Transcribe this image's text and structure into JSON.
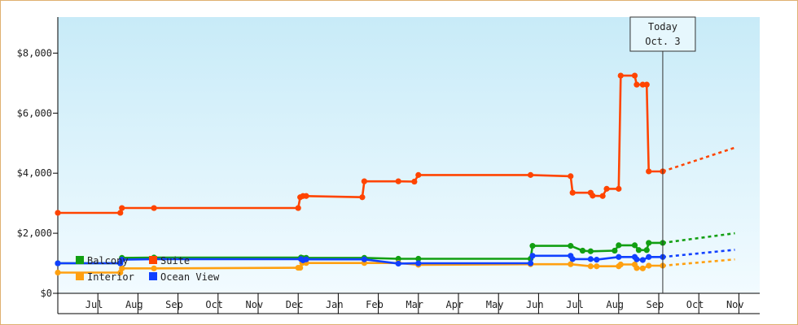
{
  "chart_data": {
    "type": "line",
    "title": "",
    "xlabel": "",
    "ylabel": "",
    "ylim": [
      0,
      9200
    ],
    "x_tick_labels": [
      "Jul",
      "Aug",
      "Sep",
      "Oct",
      "Nov",
      "Dec",
      "Jan",
      "Feb",
      "Mar",
      "Apr",
      "May",
      "Jun",
      "Jul",
      "Aug",
      "Sep",
      "Oct",
      "Nov"
    ],
    "y_ticks": [
      {
        "value": 0,
        "label": "$0"
      },
      {
        "value": 2000,
        "label": "$2,000"
      },
      {
        "value": 4000,
        "label": "$4,000"
      },
      {
        "value": 6000,
        "label": "$6,000"
      },
      {
        "value": 8000,
        "label": "$8,000"
      }
    ],
    "x_unit": "months since start (Jul = 0.5)",
    "today": {
      "line1": "Today",
      "line2": "Oct. 3",
      "x": 15.1
    },
    "legend_placement": "bottom-left",
    "grid": false,
    "series": [
      {
        "name": "Balcony",
        "color": "#129f12",
        "points": [
          [
            0,
            1000
          ],
          [
            1.56,
            1000
          ],
          [
            1.6,
            1180
          ],
          [
            2.4,
            1190
          ],
          [
            6.07,
            1190
          ],
          [
            6.12,
            1170
          ],
          [
            6.2,
            1180
          ],
          [
            7.65,
            1180
          ],
          [
            8.5,
            1150
          ],
          [
            9.0,
            1150
          ],
          [
            11.8,
            1150
          ],
          [
            11.85,
            1580
          ],
          [
            12.8,
            1580
          ],
          [
            13.1,
            1420
          ],
          [
            13.3,
            1400
          ],
          [
            13.9,
            1420
          ],
          [
            14.0,
            1600
          ],
          [
            14.4,
            1600
          ],
          [
            14.5,
            1440
          ],
          [
            14.7,
            1440
          ],
          [
            14.75,
            1680
          ],
          [
            15.1,
            1680
          ]
        ],
        "forecast": [
          [
            15.1,
            1680
          ],
          [
            16.9,
            2000
          ]
        ]
      },
      {
        "name": "Suite",
        "color": "#ff4400",
        "points": [
          [
            0,
            2680
          ],
          [
            1.56,
            2680
          ],
          [
            1.6,
            2840
          ],
          [
            2.4,
            2840
          ],
          [
            6.0,
            2840
          ],
          [
            6.05,
            3200
          ],
          [
            6.12,
            3240
          ],
          [
            6.2,
            3240
          ],
          [
            7.6,
            3200
          ],
          [
            7.65,
            3730
          ],
          [
            8.5,
            3730
          ],
          [
            8.9,
            3720
          ],
          [
            9.0,
            3940
          ],
          [
            11.8,
            3940
          ],
          [
            12.8,
            3900
          ],
          [
            12.85,
            3350
          ],
          [
            13.3,
            3350
          ],
          [
            13.35,
            3250
          ],
          [
            13.6,
            3240
          ],
          [
            13.7,
            3480
          ],
          [
            14.0,
            3480
          ],
          [
            14.05,
            7250
          ],
          [
            14.4,
            7250
          ],
          [
            14.45,
            6950
          ],
          [
            14.6,
            6950
          ],
          [
            14.7,
            6950
          ],
          [
            14.75,
            4060
          ],
          [
            15.1,
            4060
          ]
        ],
        "forecast": [
          [
            15.1,
            4060
          ],
          [
            16.9,
            4850
          ]
        ]
      },
      {
        "name": "Interior",
        "color": "#ffa010",
        "points": [
          [
            0,
            690
          ],
          [
            1.56,
            690
          ],
          [
            1.6,
            830
          ],
          [
            2.4,
            830
          ],
          [
            6.0,
            850
          ],
          [
            6.05,
            850
          ],
          [
            6.1,
            1010
          ],
          [
            6.2,
            1010
          ],
          [
            7.65,
            1010
          ],
          [
            8.5,
            1010
          ],
          [
            9.0,
            950
          ],
          [
            11.8,
            970
          ],
          [
            12.8,
            970
          ],
          [
            13.3,
            900
          ],
          [
            13.45,
            900
          ],
          [
            14.0,
            900
          ],
          [
            14.05,
            960
          ],
          [
            14.4,
            960
          ],
          [
            14.45,
            840
          ],
          [
            14.6,
            830
          ],
          [
            14.75,
            920
          ],
          [
            15.1,
            920
          ]
        ],
        "forecast": [
          [
            15.1,
            920
          ],
          [
            16.9,
            1130
          ]
        ]
      },
      {
        "name": "Ocean View",
        "color": "#1040ff",
        "points": [
          [
            0,
            1000
          ],
          [
            1.56,
            1000
          ],
          [
            1.6,
            1120
          ],
          [
            2.4,
            1140
          ],
          [
            6.07,
            1140
          ],
          [
            6.12,
            1100
          ],
          [
            6.2,
            1130
          ],
          [
            7.65,
            1130
          ],
          [
            8.5,
            990
          ],
          [
            9.0,
            1000
          ],
          [
            11.8,
            1000
          ],
          [
            11.85,
            1250
          ],
          [
            12.8,
            1250
          ],
          [
            12.85,
            1140
          ],
          [
            13.3,
            1140
          ],
          [
            13.45,
            1120
          ],
          [
            14.0,
            1210
          ],
          [
            14.4,
            1210
          ],
          [
            14.45,
            1130
          ],
          [
            14.6,
            1110
          ],
          [
            14.75,
            1210
          ],
          [
            15.1,
            1210
          ]
        ],
        "forecast": [
          [
            15.1,
            1210
          ],
          [
            16.9,
            1450
          ]
        ]
      }
    ]
  }
}
